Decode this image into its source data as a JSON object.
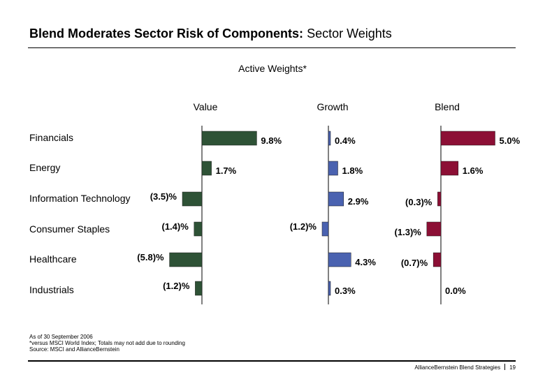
{
  "title": {
    "bold": "Blend Moderates Sector Risk of Components:",
    "normal": "Sector Weights"
  },
  "subtitle": "Active Weights*",
  "columns": [
    "Value",
    "Growth",
    "Blend"
  ],
  "rows": [
    "Financials",
    "Energy",
    "Information Technology",
    "Consumer Staples",
    "Healthcare",
    "Industrials"
  ],
  "colors": {
    "value": "#2e5236",
    "growth": "#4a62b0",
    "blend": "#8c0f35"
  },
  "chart_data": {
    "type": "bar",
    "orientation": "horizontal",
    "title": "Active Weights*",
    "categories": [
      "Financials",
      "Energy",
      "Information Technology",
      "Consumer Staples",
      "Healthcare",
      "Industrials"
    ],
    "series": [
      {
        "name": "Value",
        "values": [
          9.8,
          1.7,
          -3.5,
          -1.4,
          -5.8,
          -1.2
        ],
        "labels": [
          "9.8%",
          "1.7%",
          "(3.5)%",
          "(1.4)%",
          "(5.8)%",
          "(1.2)%"
        ]
      },
      {
        "name": "Growth",
        "values": [
          0.4,
          1.8,
          2.9,
          -1.2,
          4.3,
          0.3
        ],
        "labels": [
          "0.4%",
          "1.8%",
          "2.9%",
          "(1.2)%",
          "4.3%",
          "0.3%"
        ]
      },
      {
        "name": "Blend",
        "values": [
          5.0,
          1.6,
          -0.3,
          -1.3,
          -0.7,
          0.0
        ],
        "labels": [
          "5.0%",
          "1.6%",
          "(0.3)%",
          "(1.3)%",
          "(0.7)%",
          "0.0%"
        ]
      }
    ]
  },
  "footnotes": [
    "As of 30 September 2006",
    "*versus MSCI World Index; Totals may not add due to rounding",
    "Source: MSCI and AllianceBernstein"
  ],
  "footer": {
    "text": "AllianceBernstein Blend Strategies",
    "page": "19"
  }
}
